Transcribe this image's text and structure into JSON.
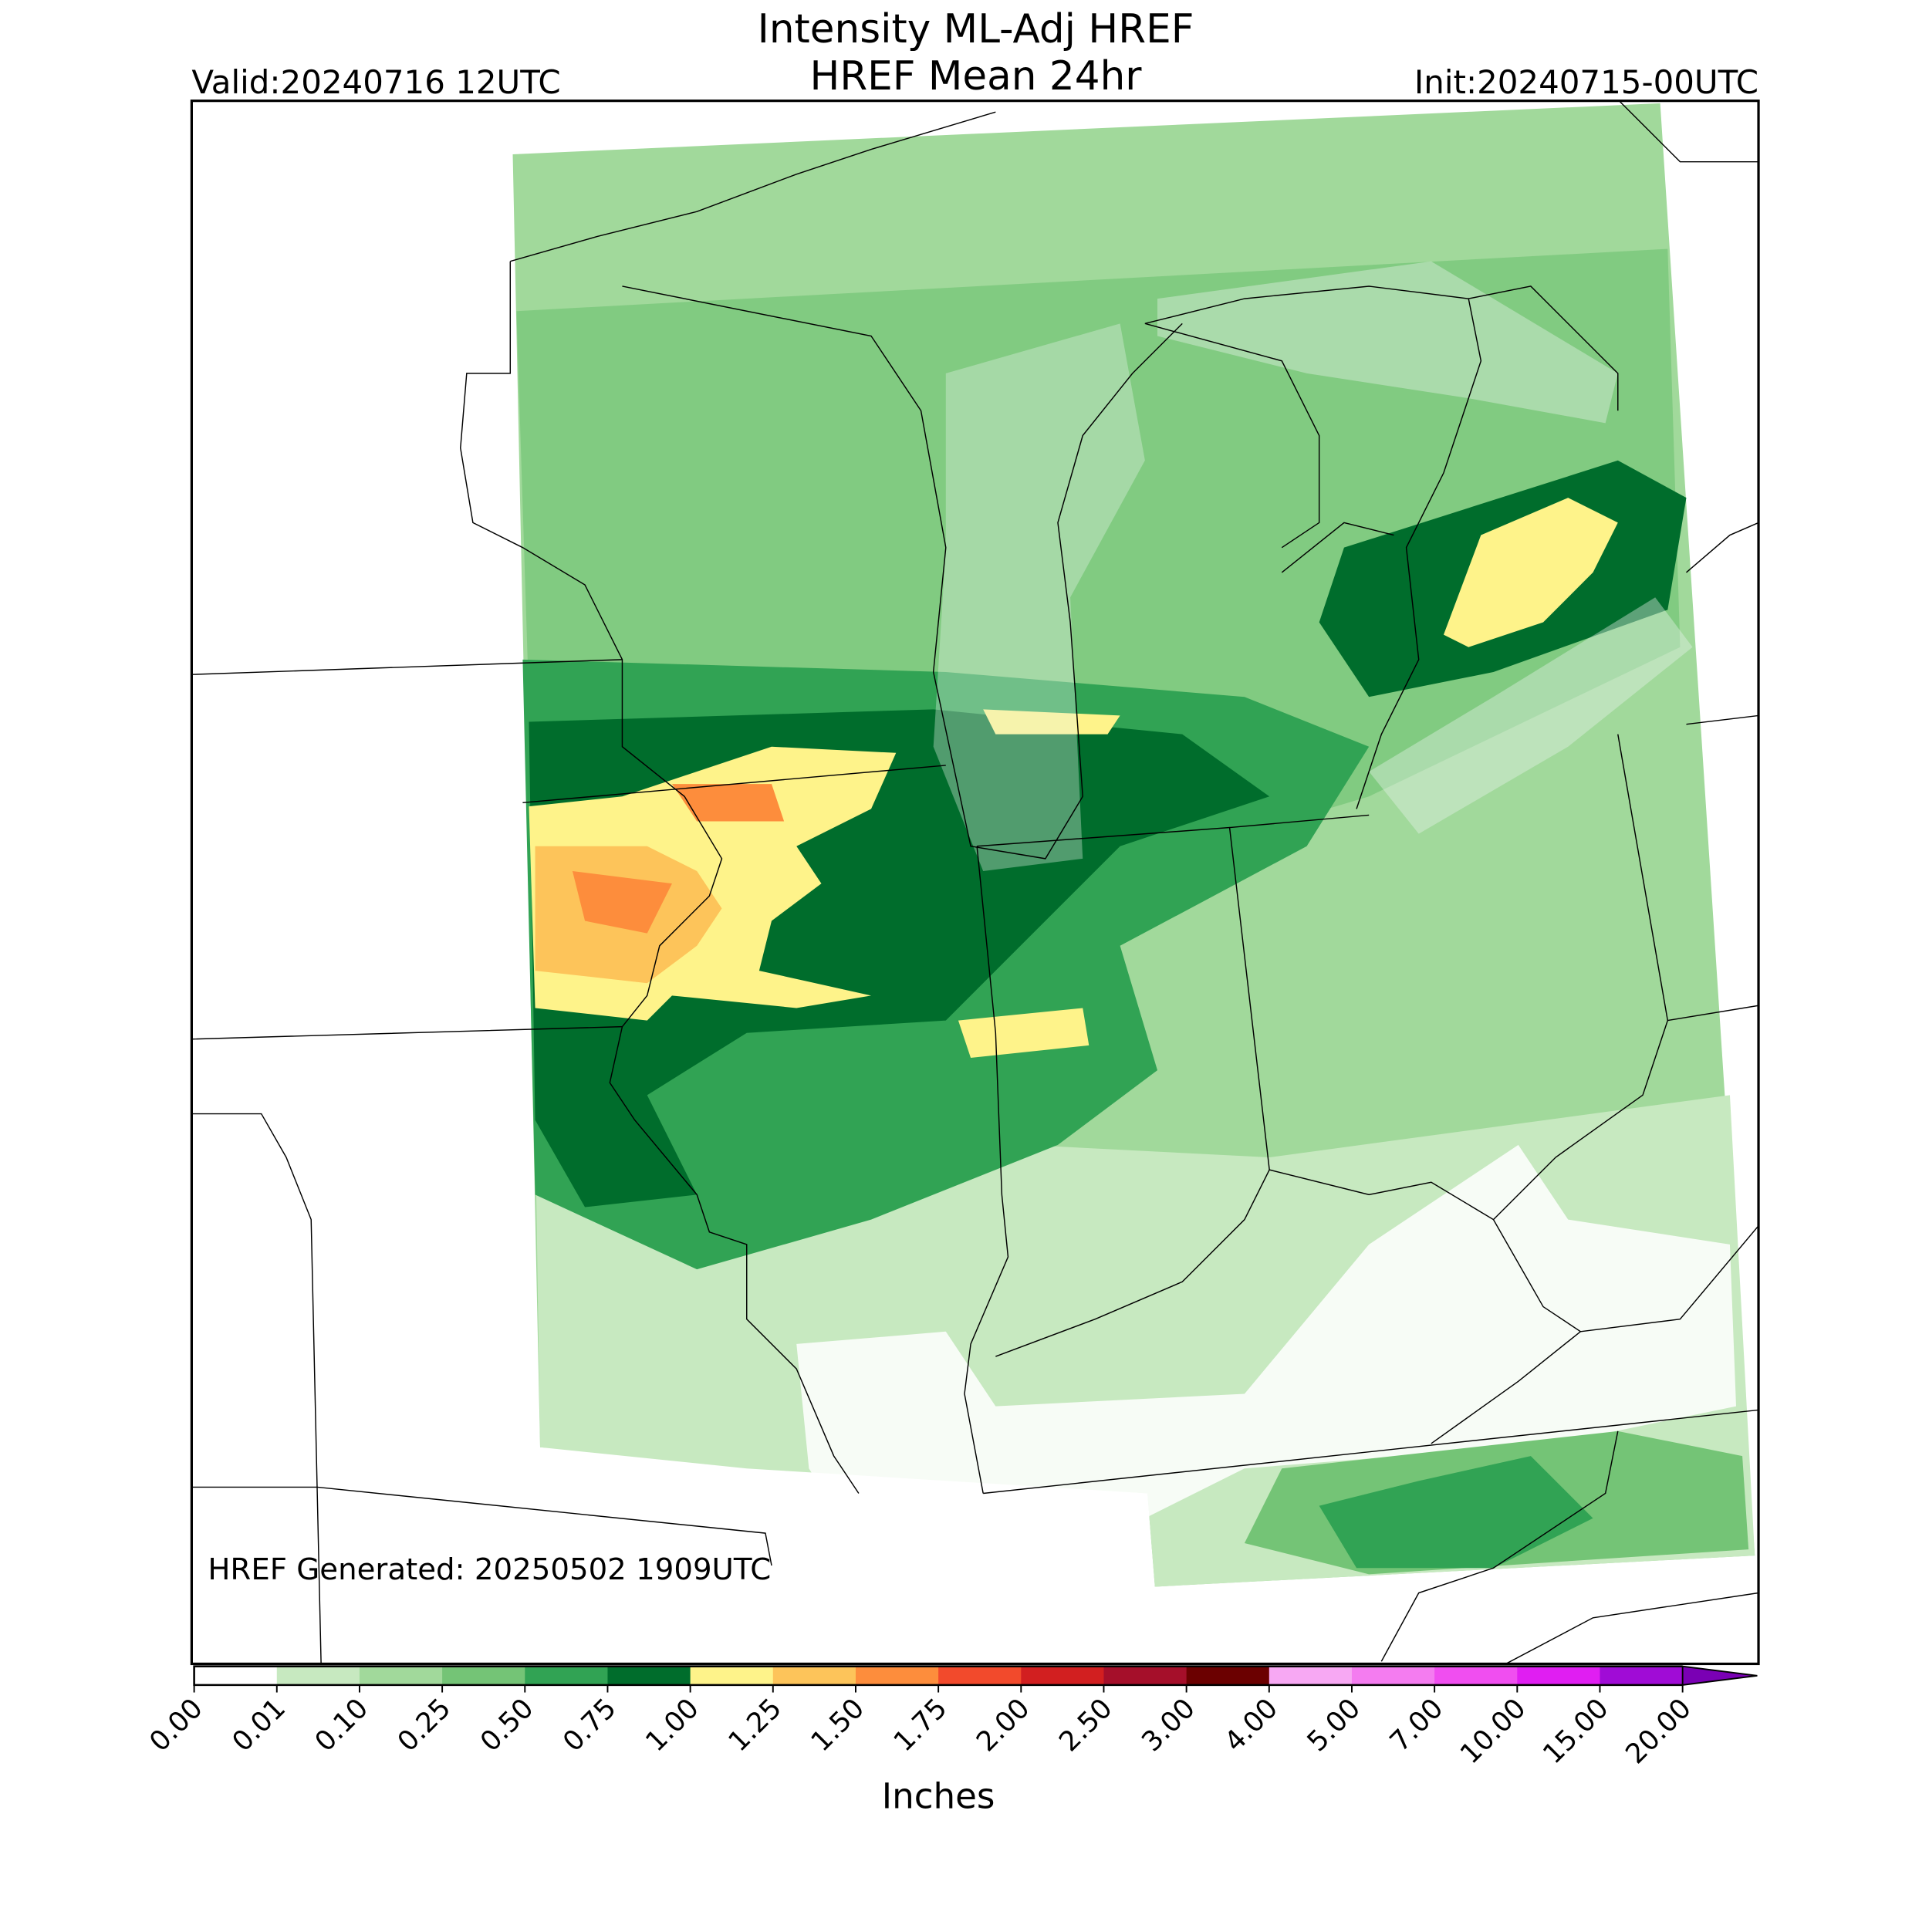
{
  "header": {
    "title": "Intensity ML-Adj HREF",
    "subtitle": "HREF Mean 24hr",
    "valid": "Valid:20240716 12UTC",
    "init": "Init:20240715-00UTC"
  },
  "annotation": "HREF Generated: 20250502 1909UTC",
  "colorbar": {
    "label": "Inches",
    "ticks": [
      {
        "value": 0,
        "label": "0.00"
      },
      {
        "value": 0.01,
        "label": "0.01"
      },
      {
        "value": 0.1,
        "label": "0.10"
      },
      {
        "value": 0.25,
        "label": "0.25"
      },
      {
        "value": 0.5,
        "label": "0.50"
      },
      {
        "value": 0.75,
        "label": "0.75"
      },
      {
        "value": 1,
        "label": "1.00"
      },
      {
        "value": 1.25,
        "label": "1.25"
      },
      {
        "value": 1.5,
        "label": "1.50"
      },
      {
        "value": 1.75,
        "label": "1.75"
      },
      {
        "value": 2,
        "label": "2.00"
      },
      {
        "value": 2.5,
        "label": "2.50"
      },
      {
        "value": 3,
        "label": "3.00"
      },
      {
        "value": 4,
        "label": "4.00"
      },
      {
        "value": 5,
        "label": "5.00"
      },
      {
        "value": 7,
        "label": "7.00"
      },
      {
        "value": 10,
        "label": "10.00"
      },
      {
        "value": 15,
        "label": "15.00"
      },
      {
        "value": 20,
        "label": "20.00"
      }
    ],
    "colors": [
      "#ffffff",
      "#c7e9c0",
      "#a1d99b",
      "#74c476",
      "#31a354",
      "#006d2c",
      "#fef38a",
      "#fdc45a",
      "#fd8d3c",
      "#f24a2c",
      "#d21f20",
      "#a50f2a",
      "#6b0000",
      "#f7a8f3",
      "#f47cf0",
      "#f04ef0",
      "#e01ef2",
      "#a00cd6"
    ],
    "extend_color": "#7a00b4"
  }
}
